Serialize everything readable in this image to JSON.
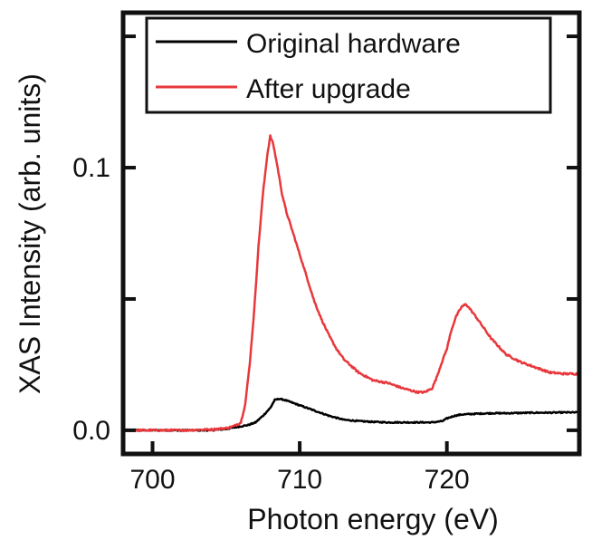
{
  "chart_data": {
    "type": "line",
    "title": "",
    "xlabel": "Photon energy (eV)",
    "ylabel": "XAS Intensity (arb. units)",
    "xlim": [
      698,
      729
    ],
    "ylim": [
      -0.009,
      0.159
    ],
    "x_ticks": [
      700,
      710,
      720
    ],
    "x_tick_labels": [
      "700",
      "710",
      "720"
    ],
    "y_ticks": [
      0.0,
      0.05,
      0.1,
      0.15
    ],
    "y_tick_labels": [
      "0.0",
      "",
      "0.1",
      ""
    ],
    "grid": false,
    "legend_position": "top-right",
    "series": [
      {
        "name": "Original hardware",
        "color": "#000000",
        "x": [
          698,
          700,
          702,
          704,
          705,
          706,
          706.5,
          707,
          707.5,
          708,
          708.3,
          708.6,
          709,
          709.5,
          710,
          710.5,
          711,
          712,
          713,
          714,
          715,
          716,
          717,
          718,
          719,
          719.7,
          720,
          720.5,
          721,
          722,
          723,
          724,
          725,
          726,
          727,
          728,
          729
        ],
        "values": [
          0.0,
          0.0,
          0.0,
          0.0,
          0.0005,
          0.0015,
          0.002,
          0.003,
          0.0055,
          0.0085,
          0.0115,
          0.012,
          0.0115,
          0.0105,
          0.0095,
          0.0085,
          0.0075,
          0.0055,
          0.004,
          0.0035,
          0.0032,
          0.003,
          0.003,
          0.003,
          0.003,
          0.0035,
          0.0045,
          0.0055,
          0.006,
          0.0063,
          0.0065,
          0.0065,
          0.0066,
          0.0067,
          0.0067,
          0.0068,
          0.0068
        ]
      },
      {
        "name": "After upgrade",
        "color": "#e8383c",
        "x": [
          698,
          700,
          702,
          704,
          705,
          705.5,
          706,
          706.3,
          706.6,
          706.9,
          707.2,
          707.5,
          707.8,
          708,
          708.2,
          708.5,
          708.8,
          709.1,
          709.5,
          710,
          710.5,
          711,
          711.5,
          712,
          712.5,
          713,
          714,
          715,
          716,
          717,
          718,
          718.5,
          719,
          719.3,
          719.6,
          720,
          720.3,
          720.6,
          721,
          721.3,
          721.6,
          722,
          722.5,
          723,
          723.5,
          724,
          725,
          726,
          727,
          728,
          729
        ],
        "values": [
          0.0,
          0.0,
          0.0,
          0.0003,
          0.0008,
          0.0015,
          0.003,
          0.01,
          0.025,
          0.045,
          0.07,
          0.09,
          0.105,
          0.112,
          0.109,
          0.1,
          0.09,
          0.083,
          0.076,
          0.067,
          0.058,
          0.049,
          0.042,
          0.036,
          0.031,
          0.027,
          0.022,
          0.019,
          0.018,
          0.016,
          0.0145,
          0.0145,
          0.016,
          0.02,
          0.025,
          0.031,
          0.038,
          0.043,
          0.047,
          0.048,
          0.046,
          0.043,
          0.039,
          0.035,
          0.032,
          0.029,
          0.026,
          0.024,
          0.022,
          0.0215,
          0.0215
        ]
      }
    ]
  }
}
